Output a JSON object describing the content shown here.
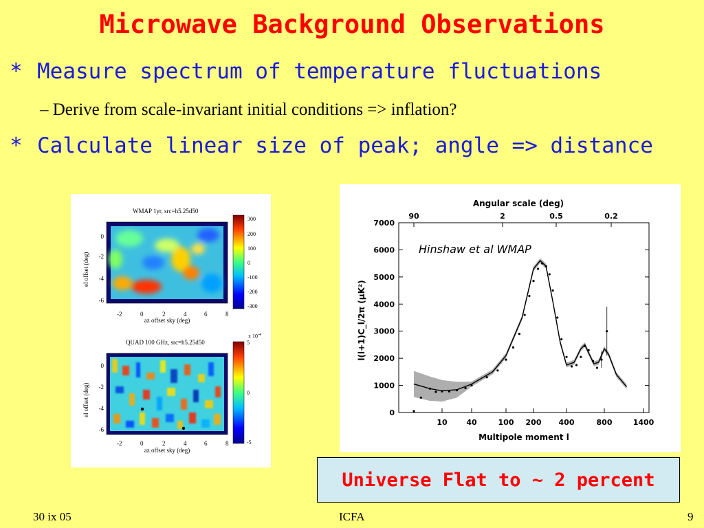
{
  "slide": {
    "title": "Microwave Background Observations",
    "bullets": [
      {
        "marker": "*",
        "text": "Measure spectrum of temperature fluctuations"
      },
      {
        "marker": "*",
        "text": "Calculate linear size of peak; angle => distance"
      }
    ],
    "sub_bullet": {
      "marker": "–",
      "text": "Derive from scale-invariant initial conditions => inflation?"
    },
    "callout": "Universe Flat to ~ 2 percent",
    "footer": {
      "left": "30 ix 05",
      "center": "ICFA",
      "right": "9"
    }
  },
  "maps": {
    "top": {
      "title": "WMAP 1yr, src=h5.25d50",
      "ylabel": "el offset (deg)",
      "xlabel": "az offset sky (deg)",
      "xticks": [
        "-2",
        "0",
        "2",
        "4",
        "6",
        "8"
      ],
      "yticks": [
        "0",
        "-2",
        "-4",
        "-6"
      ],
      "cbar_ticks": [
        "300",
        "200",
        "100",
        "0",
        "-100",
        "-200",
        "-300"
      ]
    },
    "bottom": {
      "title": "QUAD 100 GHz, src=h5.25d50",
      "ylabel": "el offset (deg)",
      "xlabel": "az offset sky (deg)",
      "xticks": [
        "-2",
        "0",
        "2",
        "4",
        "6",
        "8"
      ],
      "yticks": [
        "0",
        "-2",
        "-4",
        "-6"
      ],
      "cbar_ticks": [
        "5",
        "0",
        "-5"
      ],
      "cbar_scale": "x 10",
      "cbar_exp": "-4"
    }
  },
  "chart_data": {
    "type": "line",
    "title": "",
    "annotation": "Hinshaw et al WMAP",
    "xlabel": "Multipole moment l",
    "ylabel": "l(l+1)C_l/2π (μK²)",
    "top_axis_label": "Angular scale (deg)",
    "top_ticks": [
      "90",
      "2",
      "0.5",
      "0.2"
    ],
    "x_ticks": [
      "10",
      "40",
      "100",
      "200",
      "400",
      "800",
      "1400"
    ],
    "y_ticks": [
      "0",
      "1000",
      "2000",
      "3000",
      "4000",
      "5000",
      "6000",
      "7000"
    ],
    "ylim": [
      0,
      7000
    ],
    "x_scale": "nonlinear",
    "series": [
      {
        "kind": "model",
        "x": [
          2,
          5,
          10,
          20,
          40,
          70,
          100,
          150,
          200,
          230,
          260,
          300,
          350,
          400,
          460,
          520,
          560,
          600,
          660,
          720,
          800,
          850,
          950,
          1100
        ],
        "y": [
          1050,
          880,
          800,
          840,
          1050,
          1500,
          2100,
          3500,
          5300,
          5600,
          5400,
          4100,
          2600,
          1750,
          1850,
          2350,
          2500,
          2200,
          1800,
          1850,
          2350,
          2150,
          1400,
          950
        ]
      },
      {
        "kind": "data",
        "x": [
          2,
          3,
          5,
          7,
          10,
          14,
          20,
          30,
          40,
          60,
          80,
          100,
          120,
          140,
          160,
          180,
          200,
          220,
          240,
          260,
          280,
          300,
          330,
          360,
          400,
          440,
          480,
          520,
          560,
          600,
          650,
          700,
          760,
          830
        ],
        "y": [
          50,
          550,
          880,
          760,
          780,
          780,
          820,
          900,
          1000,
          1300,
          1550,
          1950,
          2400,
          2900,
          3600,
          4300,
          4850,
          5300,
          5500,
          5400,
          5100,
          4500,
          3500,
          2700,
          2050,
          1700,
          1750,
          2050,
          2450,
          2300,
          1900,
          1650,
          1950,
          3000
        ]
      }
    ]
  }
}
